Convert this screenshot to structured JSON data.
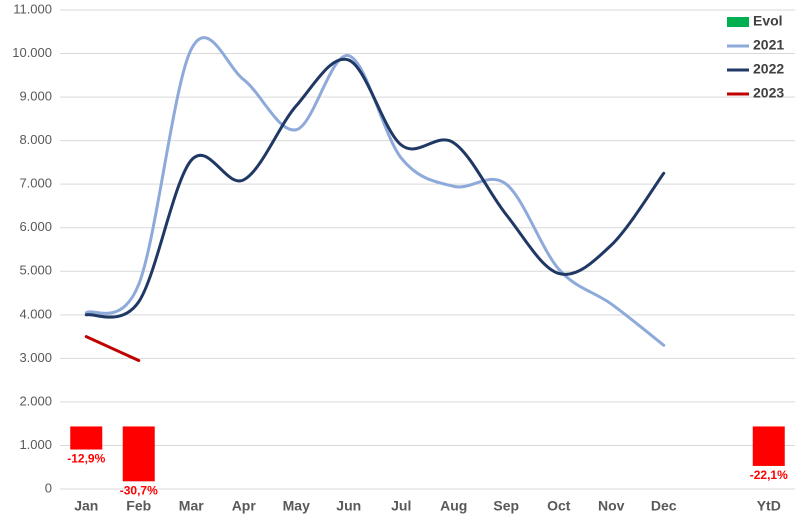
{
  "chart_data": {
    "type": "combo",
    "categories": [
      "Jan",
      "Feb",
      "Mar",
      "Apr",
      "May",
      "Jun",
      "Jul",
      "Aug",
      "Sep",
      "Oct",
      "Nov",
      "Dec",
      null,
      "YtD"
    ],
    "ylim": [
      0,
      11000
    ],
    "yticks": [
      0,
      {
        "value": 1000,
        "label": "1.000"
      },
      {
        "value": 2000,
        "label": "2.000"
      },
      {
        "value": 3000,
        "label": "3.000"
      },
      {
        "value": 4000,
        "label": "4.000"
      },
      {
        "value": 5000,
        "label": "5.000"
      },
      {
        "value": 6000,
        "label": "6.000"
      },
      {
        "value": 7000,
        "label": "7.000"
      },
      {
        "value": 8000,
        "label": "8.000"
      },
      {
        "value": 9000,
        "label": "9.000"
      },
      {
        "value": 10000,
        "label": "10.000"
      },
      {
        "value": 11000,
        "label": "11.000"
      }
    ],
    "y2lim": [
      -35,
      233
    ],
    "grid": true,
    "legend": "top-right",
    "negative_color": "#ff0000",
    "series": [
      {
        "name": "Evol",
        "type": "bar",
        "axis": "y2",
        "color": "#00b050",
        "values": [
          -12.9,
          -30.7,
          null,
          null,
          null,
          null,
          null,
          null,
          null,
          null,
          null,
          null,
          null,
          -22.1
        ],
        "value_labels": [
          "-12,9%",
          "-30,7%",
          null,
          null,
          null,
          null,
          null,
          null,
          null,
          null,
          null,
          null,
          null,
          "-22,1%"
        ]
      },
      {
        "name": "2021",
        "type": "line",
        "color": "#8eaadb",
        "values": [
          4050,
          4700,
          10100,
          9400,
          8250,
          9950,
          7600,
          6950,
          7000,
          5050,
          4250,
          3300,
          null,
          null
        ]
      },
      {
        "name": "2022",
        "type": "line",
        "color": "#1f3864",
        "values": [
          4000,
          4300,
          7550,
          7100,
          8800,
          9850,
          7900,
          7950,
          6300,
          4950,
          5600,
          7250,
          null,
          null
        ]
      },
      {
        "name": "2023",
        "type": "line",
        "color": "#c00000",
        "values": [
          3500,
          2950,
          null,
          null,
          null,
          null,
          null,
          null,
          null,
          null,
          null,
          null,
          null,
          null
        ]
      }
    ]
  }
}
